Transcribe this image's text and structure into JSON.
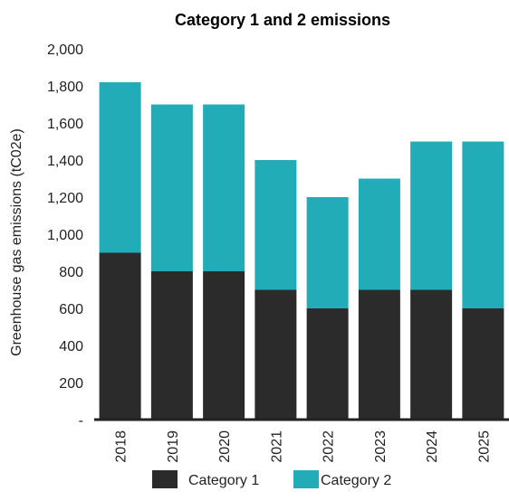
{
  "chart_data": {
    "type": "bar",
    "stacked": true,
    "title": "Category 1 and 2 emissions",
    "ylabel": "Greenhouse gas emissions (tC02e)",
    "xlabel": "",
    "ylim": [
      0,
      2000
    ],
    "yticks": [
      0,
      200,
      400,
      600,
      800,
      1000,
      1200,
      1400,
      1600,
      1800,
      2000
    ],
    "ytick_labels": [
      "-",
      "200",
      "400",
      "600",
      "800",
      "1,000",
      "1,200",
      "1,400",
      "1,600",
      "1,800",
      "2,000"
    ],
    "categories": [
      "2018",
      "2019",
      "2020",
      "2021",
      "2022",
      "2023",
      "2024",
      "2025"
    ],
    "series": [
      {
        "name": "Category 1",
        "color": "#2b2b2b",
        "values": [
          900,
          800,
          800,
          700,
          600,
          700,
          700,
          600
        ]
      },
      {
        "name": "Category 2",
        "color": "#21acb8",
        "values": [
          920,
          900,
          900,
          700,
          600,
          600,
          800,
          900
        ]
      }
    ],
    "grid": false,
    "legend_position": "bottom"
  }
}
